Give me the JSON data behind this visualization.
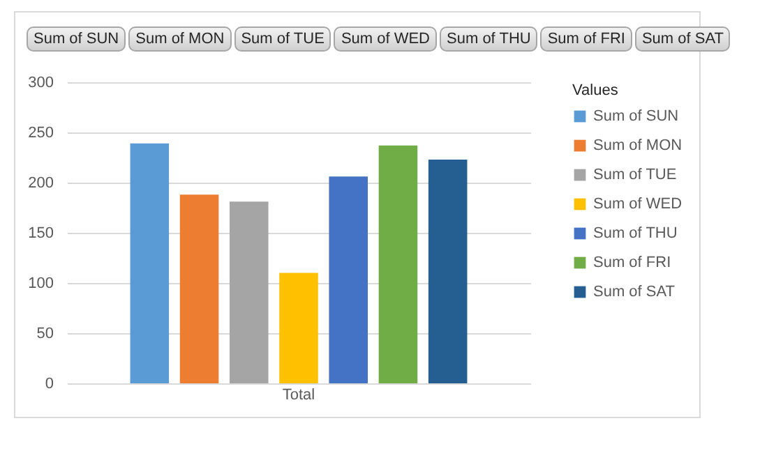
{
  "chart_data": {
    "type": "bar",
    "categories": [
      "Total"
    ],
    "legend_title": "Values",
    "legend": "right",
    "grid": "y",
    "ylim": [
      0,
      300
    ],
    "yticks": [
      0,
      50,
      100,
      150,
      200,
      250,
      300
    ],
    "series": [
      {
        "name": "Sum of SUN",
        "color": "#5b9bd5",
        "values": [
          239
        ]
      },
      {
        "name": "Sum of MON",
        "color": "#ed7d31",
        "values": [
          188
        ]
      },
      {
        "name": "Sum of TUE",
        "color": "#a5a5a5",
        "values": [
          181
        ]
      },
      {
        "name": "Sum of WED",
        "color": "#ffc000",
        "values": [
          110
        ]
      },
      {
        "name": "Sum of THU",
        "color": "#4472c4",
        "values": [
          206
        ]
      },
      {
        "name": "Sum of FRI",
        "color": "#70ad47",
        "values": [
          237
        ]
      },
      {
        "name": "Sum of SAT",
        "color": "#255e91",
        "values": [
          223
        ]
      }
    ]
  }
}
